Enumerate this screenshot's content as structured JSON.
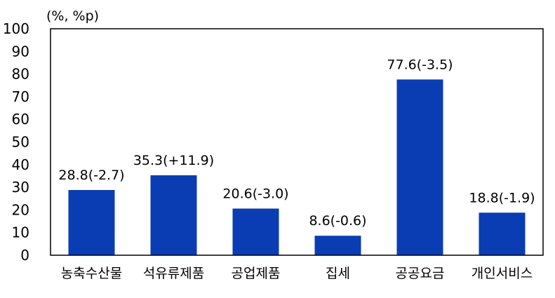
{
  "chart_data": {
    "type": "bar",
    "title": "",
    "unit_label": "(%, %p)",
    "xlabel": "",
    "ylabel": "",
    "ylim": [
      0,
      100
    ],
    "yticks": [
      "0",
      "10",
      "20",
      "30",
      "40",
      "50",
      "60",
      "70",
      "80",
      "90",
      "100"
    ],
    "grid": false,
    "legend": "none",
    "bar_color": "#0A3DB4",
    "categories": [
      "농축수산물",
      "석유류제품",
      "공업제품",
      "집세",
      "공공요금",
      "개인서비스"
    ],
    "values": [
      28.8,
      35.3,
      20.6,
      8.6,
      77.6,
      18.8
    ],
    "data_labels": [
      "28.8(-2.7)",
      "35.3(+11.9)",
      "20.6(-3.0)",
      "8.6(-0.6)",
      "77.6(-3.5)",
      "18.8(-1.9)"
    ]
  }
}
